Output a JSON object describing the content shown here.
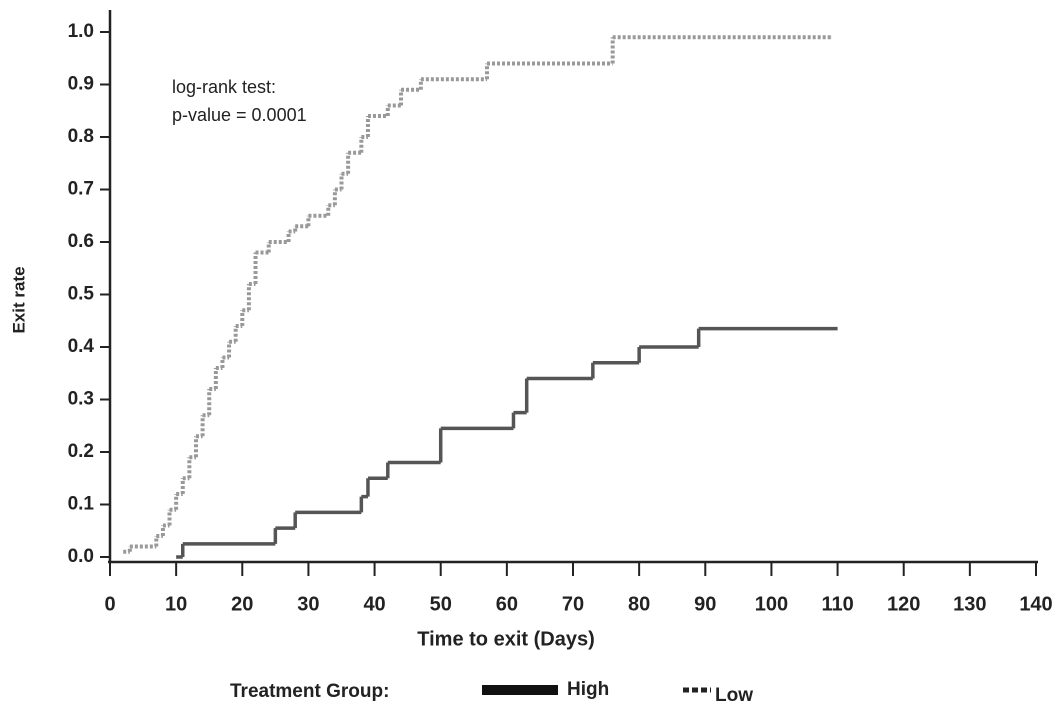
{
  "chart_data": {
    "type": "step",
    "xlabel": "Time to exit (Days)",
    "ylabel": "Exit rate",
    "annotations": [
      "log-rank test:",
      "p-value = 0.0001"
    ],
    "legend_title": "Treatment Group:",
    "xlim": [
      0,
      140
    ],
    "xticks": [
      0,
      10,
      20,
      30,
      40,
      50,
      60,
      70,
      80,
      90,
      100,
      110,
      120,
      130,
      140
    ],
    "ylim": [
      0,
      1
    ],
    "yticks": [
      {
        "value": 0,
        "label": "0.0"
      },
      0.1,
      0.2,
      0.3,
      0.4,
      0.5,
      0.6,
      0.7,
      0.8,
      0.9,
      {
        "value": 1,
        "label": "1.0"
      }
    ],
    "series": [
      {
        "name": "High",
        "color": "#555555",
        "linestyle": "solid",
        "x": [
          10,
          11,
          25,
          28,
          38,
          39,
          42,
          50,
          61,
          63,
          73,
          80,
          89,
          110
        ],
        "values": [
          0.0,
          0.025,
          0.055,
          0.085,
          0.115,
          0.15,
          0.18,
          0.245,
          0.275,
          0.34,
          0.37,
          0.4,
          0.435,
          0.435
        ]
      },
      {
        "name": "Low",
        "color": "#999999",
        "linestyle": "dotted",
        "x": [
          2,
          3,
          7,
          8,
          9,
          10,
          11,
          12,
          13,
          14,
          15,
          16,
          17,
          18,
          19,
          20,
          21,
          22,
          24,
          27,
          28,
          30,
          33,
          34,
          35,
          36,
          38,
          39,
          42,
          44,
          47,
          57,
          76,
          109
        ],
        "values": [
          0.01,
          0.02,
          0.04,
          0.06,
          0.09,
          0.12,
          0.15,
          0.19,
          0.23,
          0.27,
          0.32,
          0.36,
          0.38,
          0.41,
          0.44,
          0.47,
          0.52,
          0.58,
          0.6,
          0.62,
          0.63,
          0.65,
          0.67,
          0.7,
          0.73,
          0.77,
          0.8,
          0.84,
          0.86,
          0.89,
          0.91,
          0.94,
          0.99,
          0.99
        ]
      }
    ]
  }
}
